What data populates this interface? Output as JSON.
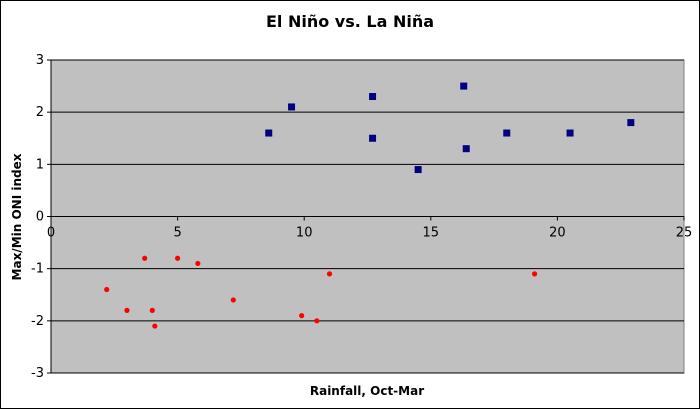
{
  "chart_data": {
    "type": "scatter",
    "title": "El Niño vs. La Niña",
    "xlabel": "Rainfall, Oct-Mar",
    "ylabel": "Max/Min ONI index",
    "xlim": [
      0,
      25
    ],
    "ylim": [
      -3,
      3
    ],
    "x_ticks": [
      0,
      5,
      10,
      15,
      20,
      25
    ],
    "y_ticks": [
      -3,
      -2,
      -1,
      0,
      1,
      2,
      3
    ],
    "grid": "horizontal major gridlines",
    "plot_background": "#c0c0c0",
    "series": [
      {
        "marker": "square",
        "color": "#000080",
        "points": [
          {
            "x": 8.6,
            "y": 1.6
          },
          {
            "x": 9.5,
            "y": 2.1
          },
          {
            "x": 12.7,
            "y": 2.3
          },
          {
            "x": 12.7,
            "y": 1.5
          },
          {
            "x": 14.5,
            "y": 0.9
          },
          {
            "x": 16.3,
            "y": 2.5
          },
          {
            "x": 16.4,
            "y": 1.3
          },
          {
            "x": 18.0,
            "y": 1.6
          },
          {
            "x": 20.5,
            "y": 1.6
          },
          {
            "x": 22.9,
            "y": 1.8
          }
        ]
      },
      {
        "marker": "circle",
        "color": "#ff0000",
        "points": [
          {
            "x": 2.2,
            "y": -1.4
          },
          {
            "x": 3.0,
            "y": -1.8
          },
          {
            "x": 3.7,
            "y": -0.8
          },
          {
            "x": 4.0,
            "y": -1.8
          },
          {
            "x": 4.1,
            "y": -2.1
          },
          {
            "x": 5.0,
            "y": -0.8
          },
          {
            "x": 5.8,
            "y": -0.9
          },
          {
            "x": 7.2,
            "y": -1.6
          },
          {
            "x": 9.9,
            "y": -1.9
          },
          {
            "x": 10.5,
            "y": -2.0
          },
          {
            "x": 11.0,
            "y": -1.1
          },
          {
            "x": 19.1,
            "y": -1.1
          }
        ]
      }
    ]
  }
}
